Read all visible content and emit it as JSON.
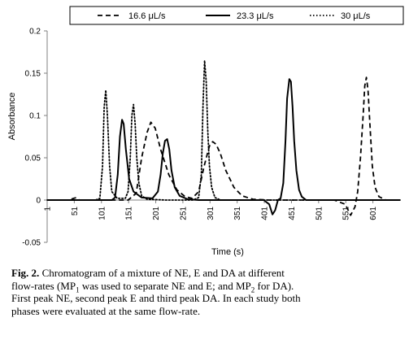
{
  "chart_data": {
    "type": "line",
    "ylabel": "Absorbance",
    "xlabel": "Time (s)",
    "ylim": [
      -0.05,
      0.2
    ],
    "yticks": [
      "-0.05",
      "0",
      "0.05",
      "0.1",
      "0.15",
      "0.2"
    ],
    "xlim": [
      1,
      651
    ],
    "xticks": [
      "1",
      "51",
      "101",
      "151",
      "201",
      "251",
      "301",
      "351",
      "401",
      "451",
      "501",
      "551",
      "601"
    ],
    "grid": false,
    "legend_position": "top",
    "series": [
      {
        "name": "16.6 μL/s",
        "dash": "dashed",
        "x": [
          1,
          40,
          50,
          55,
          60,
          100,
          150,
          165,
          175,
          185,
          192,
          200,
          210,
          225,
          240,
          255,
          268,
          280,
          290,
          300,
          306,
          312,
          320,
          330,
          345,
          360,
          380,
          410,
          450,
          500,
          530,
          550,
          560,
          568,
          573,
          578,
          583,
          586,
          589,
          592,
          595,
          600,
          605,
          612,
          625,
          640,
          651
        ],
        "values": [
          0,
          0,
          0.002,
          0.003,
          0,
          0,
          0,
          0.008,
          0.05,
          0.08,
          0.092,
          0.085,
          0.06,
          0.03,
          0.012,
          0.004,
          0.002,
          0.01,
          0.04,
          0.064,
          0.069,
          0.066,
          0.055,
          0.035,
          0.015,
          0.005,
          0.001,
          0,
          0,
          0,
          0,
          -0.005,
          -0.018,
          -0.008,
          0.01,
          0.05,
          0.1,
          0.135,
          0.145,
          0.13,
          0.095,
          0.04,
          0.015,
          0.004,
          0,
          0,
          0
        ]
      },
      {
        "name": "23.3 μL/s",
        "dash": "solid",
        "x": [
          1,
          100,
          120,
          126,
          131,
          135,
          139,
          142,
          146,
          152,
          160,
          175,
          195,
          205,
          210,
          214,
          218,
          222,
          226,
          230,
          236,
          245,
          260,
          280,
          300,
          340,
          380,
          400,
          410,
          416,
          421,
          426,
          431,
          436,
          440,
          443,
          447,
          450,
          453,
          456,
          460,
          465,
          470,
          478,
          490,
          510,
          540,
          651
        ],
        "values": [
          0,
          0,
          0,
          0.003,
          0.03,
          0.075,
          0.095,
          0.09,
          0.06,
          0.025,
          0.01,
          0.003,
          0.002,
          0.01,
          0.03,
          0.055,
          0.07,
          0.072,
          0.06,
          0.035,
          0.015,
          0.005,
          0.001,
          0,
          0,
          0,
          0,
          0,
          -0.005,
          -0.017,
          -0.012,
          0,
          0.002,
          0.02,
          0.07,
          0.12,
          0.143,
          0.14,
          0.11,
          0.07,
          0.035,
          0.012,
          0.004,
          0,
          0,
          0,
          0,
          0
        ]
      },
      {
        "name": "30 μL/s",
        "dash": "dotted",
        "x": [
          1,
          90,
          98,
          103,
          106,
          109,
          112,
          116,
          120,
          130,
          145,
          150,
          154,
          157,
          160,
          163,
          166,
          170,
          175,
          185,
          220,
          270,
          280,
          285,
          288,
          291,
          294,
          297,
          300,
          304,
          310,
          320,
          340,
          651
        ],
        "values": [
          0,
          0,
          0.002,
          0.04,
          0.11,
          0.13,
          0.1,
          0.04,
          0.01,
          0.002,
          0.002,
          0.01,
          0.05,
          0.1,
          0.113,
          0.09,
          0.05,
          0.02,
          0.005,
          0.001,
          0,
          0,
          0.003,
          0.03,
          0.11,
          0.165,
          0.14,
          0.08,
          0.04,
          0.015,
          0.003,
          0,
          0,
          0
        ]
      }
    ]
  },
  "caption": {
    "label": "Fig. 2.",
    "line1": " Chromatogram of a mixture of NE, E and DA at different",
    "line2a": "flow-rates (MP",
    "line2_sub1": "1",
    "line2b": " was used to separate NE and E; and MP",
    "line2_sub2": "2",
    "line2c": " for DA).",
    "line3": "First peak NE, second peak E and third peak DA. In each study both",
    "line4": "phases were evaluated at the same flow-rate."
  }
}
